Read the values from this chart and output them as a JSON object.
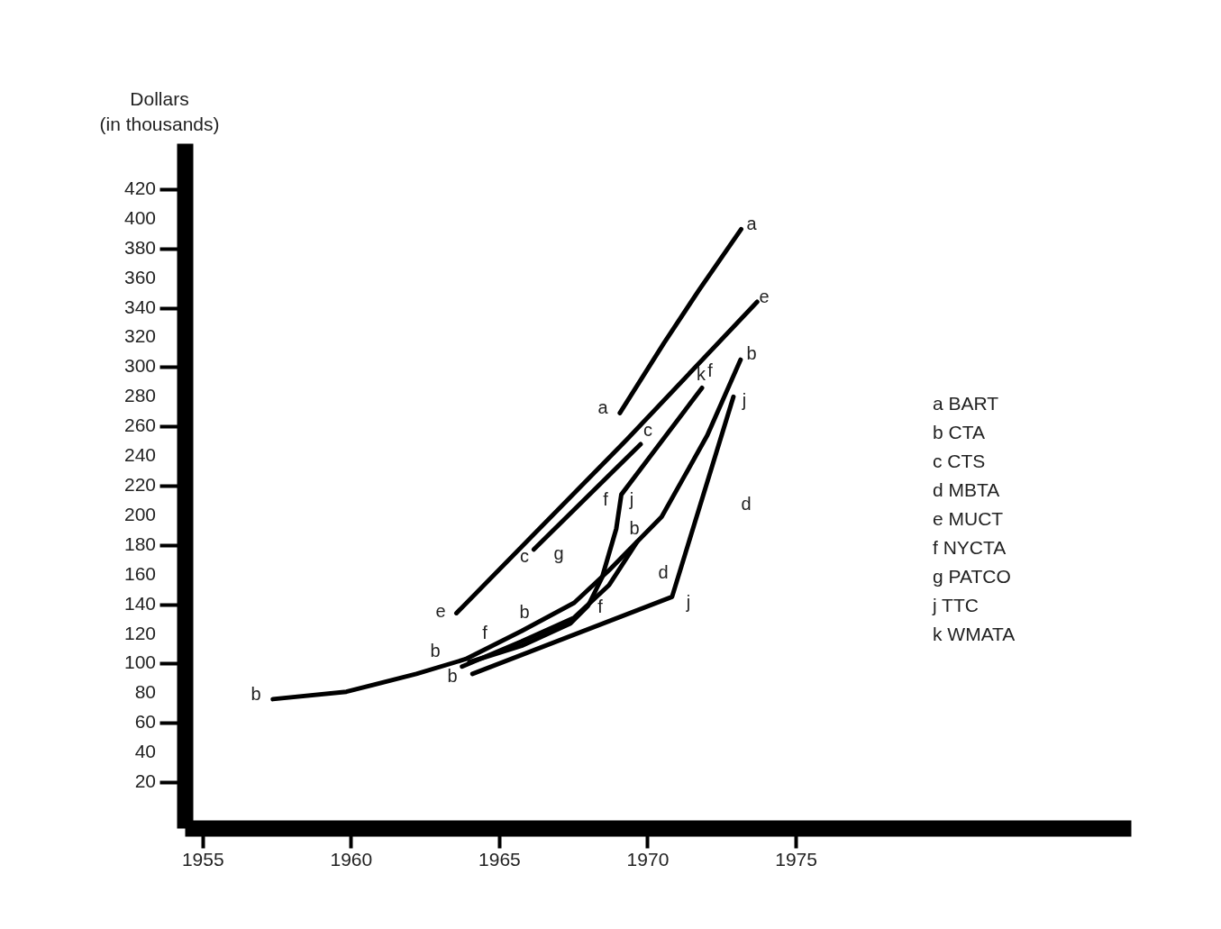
{
  "chart_data": {
    "type": "line",
    "ylabel": "Dollars\n(in thousands)",
    "xlim": [
      1954.4,
      1986.3
    ],
    "ylim": [
      -11,
      451
    ],
    "xticks": [
      1955,
      1960,
      1965,
      1970,
      1975
    ],
    "yticks": [
      20,
      40,
      60,
      80,
      100,
      120,
      140,
      160,
      180,
      200,
      220,
      240,
      260,
      280,
      300,
      320,
      340,
      360,
      380,
      400,
      420
    ],
    "grid": false,
    "marker": "none",
    "line_style": "solid",
    "series": [
      {
        "color": "#000000",
        "x": [
          1969.07,
          1970.55,
          1971.74,
          1973.16
        ],
        "values": [
          269,
          316,
          352,
          393
        ]
      },
      {
        "color": "#000000",
        "x": [
          1963.56,
          1969.3,
          1973.7
        ],
        "values": [
          134,
          251,
          344
        ]
      },
      {
        "color": "#000000",
        "x": [
          1966.17,
          1969.77
        ],
        "values": [
          177,
          248
        ]
      },
      {
        "color": "#000000",
        "x": [
          1957.37,
          1959.85,
          1962.21,
          1963.87,
          1965.76,
          1967.53,
          1968.71,
          1970.48,
          1972.02,
          1973.14
        ],
        "values": [
          76,
          81,
          93,
          103,
          122,
          141,
          163,
          199,
          254,
          305
        ]
      },
      {
        "color": "#000000",
        "x": [
          1963.75,
          1965.76,
          1967.53,
          1968.71,
          1969.65
        ],
        "values": [
          98,
          115,
          131,
          153,
          182
        ]
      },
      {
        "color": "#000000",
        "x": [
          1964.0,
          1965.76,
          1967.4,
          1968.0,
          1968.47,
          1968.95,
          1969.12,
          1971.84
        ],
        "values": [
          101,
          112,
          127,
          139,
          158,
          191,
          214,
          286
        ]
      },
      {
        "color": "#000000",
        "x": [
          1964.1,
          1970.83,
          1972.9
        ],
        "values": [
          93,
          145,
          280
        ]
      }
    ],
    "annotations": [
      "a",
      "a",
      "e",
      "e",
      "b",
      "b",
      "b",
      "b",
      "b",
      "b",
      "c",
      "c",
      "g",
      "f",
      "f",
      "f",
      "f",
      "k",
      "j",
      "j",
      "j",
      "d",
      "d",
      "a  BART",
      "b  CTA",
      "c  CTS",
      "d  MBTA",
      "e  MUCT",
      "f  NYCTA",
      "g  PATCO",
      "j  TTC",
      "k  WMATA"
    ]
  }
}
